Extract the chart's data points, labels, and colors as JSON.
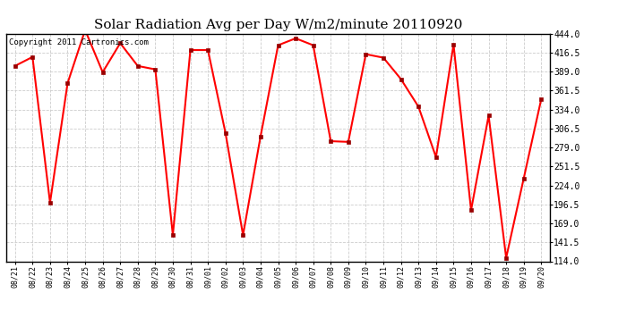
{
  "title": "Solar Radiation Avg per Day W/m2/minute 20110920",
  "copyright": "Copyright 2011 Cartronics.com",
  "dates": [
    "08/21",
    "08/22",
    "08/23",
    "08/24",
    "08/25",
    "08/26",
    "08/27",
    "08/28",
    "08/29",
    "08/30",
    "08/31",
    "09/01",
    "09/02",
    "09/03",
    "09/04",
    "09/05",
    "09/06",
    "09/07",
    "09/08",
    "09/09",
    "09/10",
    "09/11",
    "09/12",
    "09/13",
    "09/14",
    "09/15",
    "09/16",
    "09/17",
    "09/18",
    "09/19",
    "09/20"
  ],
  "values": [
    397,
    410,
    199,
    372,
    449,
    388,
    430,
    397,
    392,
    152,
    420,
    420,
    300,
    152,
    295,
    427,
    437,
    427,
    288,
    287,
    414,
    409,
    378,
    338,
    265,
    428,
    188,
    325,
    119,
    234,
    349
  ],
  "ymin": 114.0,
  "ymax": 444.0,
  "yticks": [
    114.0,
    141.5,
    169.0,
    196.5,
    224.0,
    251.5,
    279.0,
    306.5,
    334.0,
    361.5,
    389.0,
    416.5,
    444.0
  ],
  "line_color": "#ff0000",
  "marker_color": "#990000",
  "bg_color": "#ffffff",
  "grid_color": "#cccccc",
  "title_fontsize": 11,
  "copyright_fontsize": 6.5,
  "tick_fontsize": 7,
  "xtick_fontsize": 6
}
